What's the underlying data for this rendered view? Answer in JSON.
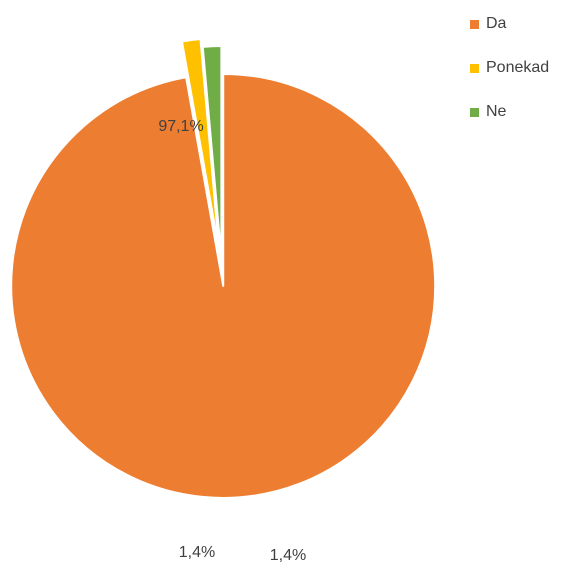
{
  "chart_data": {
    "type": "pie",
    "title": "",
    "categories": [
      "Da",
      "Ponekad",
      "Ne"
    ],
    "values": [
      97.1,
      1.4,
      1.4
    ],
    "value_labels": [
      "97,1%",
      "1,4%",
      "1,4%"
    ],
    "colors": [
      "#ED7D31",
      "#FFC000",
      "#70AD47"
    ],
    "exploded": true,
    "legend_position": "top-right"
  }
}
